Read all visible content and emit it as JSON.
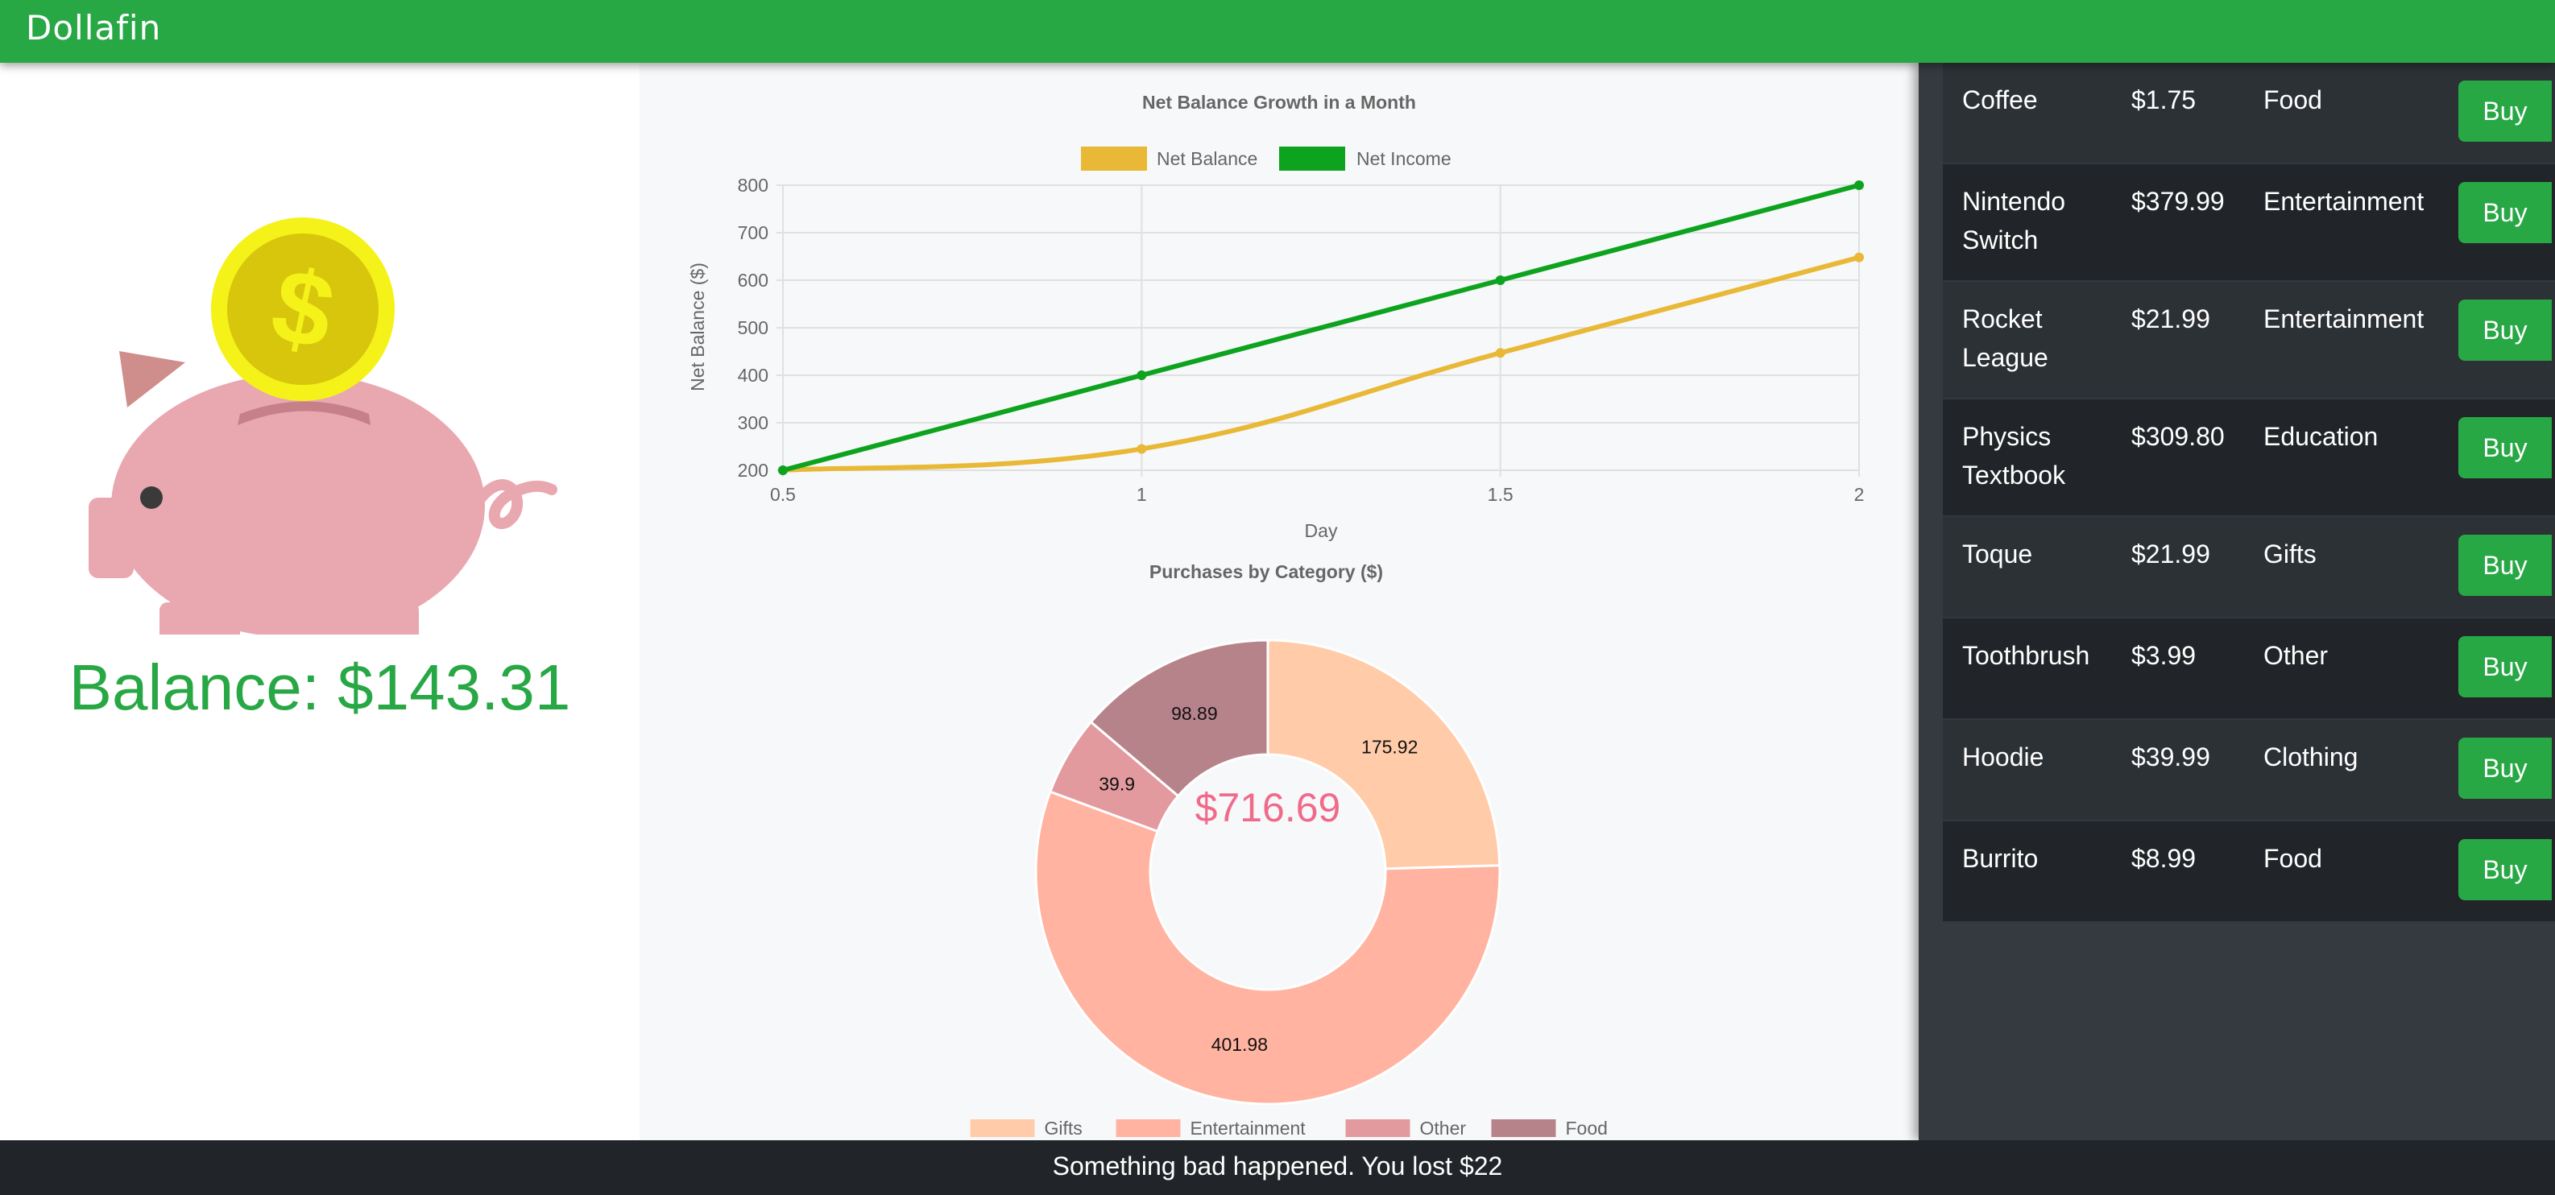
{
  "app": {
    "brand": "Dollafin"
  },
  "balance": {
    "text": "Balance: $143.31"
  },
  "footer": {
    "message": "Something bad happened. You lost $22"
  },
  "shop": {
    "buy_label": "Buy",
    "items": [
      {
        "name": "Coffee",
        "price": "$1.75",
        "category": "Food"
      },
      {
        "name": "Nintendo Switch",
        "price": "$379.99",
        "category": "Entertainment"
      },
      {
        "name": "Rocket League",
        "price": "$21.99",
        "category": "Entertainment"
      },
      {
        "name": "Physics Textbook",
        "price": "$309.80",
        "category": "Education"
      },
      {
        "name": "Toque",
        "price": "$21.99",
        "category": "Gifts"
      },
      {
        "name": "Toothbrush",
        "price": "$3.99",
        "category": "Other"
      },
      {
        "name": "Hoodie",
        "price": "$39.99",
        "category": "Clothing"
      },
      {
        "name": "Burrito",
        "price": "$8.99",
        "category": "Food"
      }
    ]
  },
  "colors": {
    "brand": "#28a745",
    "net_balance": "#e8b836",
    "net_income": "#0ea31e",
    "donut_center": "#f06a8a"
  },
  "icons": {
    "illustration": "piggy-bank-icon",
    "coin": "dollar-coin-icon"
  },
  "chart_data": [
    {
      "type": "line",
      "title": "Net Balance Growth in a Month",
      "xlabel": "Day",
      "ylabel": "Net Balance ($)",
      "x": [
        0.5,
        1,
        1.5,
        2
      ],
      "xticks": [
        "0.5",
        "1",
        "1.5",
        "2"
      ],
      "ylim": [
        200,
        800
      ],
      "yticks": [
        200,
        300,
        400,
        500,
        600,
        700,
        800
      ],
      "grid": true,
      "legend": "top",
      "series": [
        {
          "name": "Net Balance",
          "color": "#e8b836",
          "values": [
            200,
            245,
            447,
            648
          ]
        },
        {
          "name": "Net Income",
          "color": "#0ea31e",
          "values": [
            200,
            400,
            600,
            800
          ]
        }
      ]
    },
    {
      "type": "pie",
      "title": "Purchases by Category ($)",
      "center_label": "$716.69",
      "legend": "bottom",
      "labels": [
        "Gifts",
        "Entertainment",
        "Other",
        "Food"
      ],
      "values": [
        175.92,
        401.98,
        39.9,
        98.89
      ],
      "value_labels": [
        "175.92",
        "401.98",
        "39.9",
        "98.89"
      ],
      "colors": [
        "#ffcba8",
        "#ffb3a0",
        "#e39a9f",
        "#b7838b"
      ]
    }
  ]
}
